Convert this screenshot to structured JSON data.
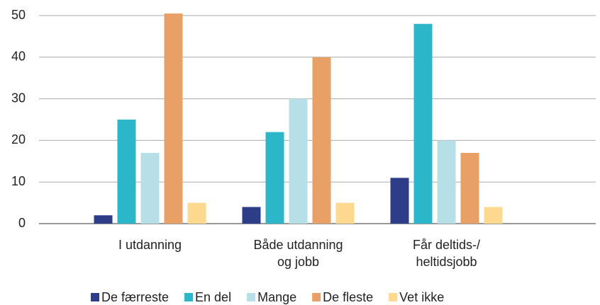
{
  "chart_data": {
    "type": "bar",
    "categories": [
      "I utdanning",
      "Både utdanning\nog jobb",
      "Får deltids-/\nheltidsjobb"
    ],
    "series": [
      {
        "name": "De færreste",
        "color": "#2e3d87",
        "values": [
          2,
          4,
          11
        ]
      },
      {
        "name": "En del",
        "color": "#2bb7c9",
        "values": [
          25,
          22,
          48
        ]
      },
      {
        "name": "Mange",
        "color": "#b7dfe8",
        "values": [
          17,
          30,
          20
        ]
      },
      {
        "name": "De fleste",
        "color": "#e9a066",
        "values": [
          50.5,
          40,
          17
        ]
      },
      {
        "name": "Vet ikke",
        "color": "#fcd98f",
        "values": [
          5,
          5,
          4
        ]
      }
    ],
    "ylim": [
      0,
      50
    ],
    "yticks": [
      0,
      10,
      20,
      30,
      40,
      50
    ],
    "grid": true,
    "legend": "bottom"
  }
}
